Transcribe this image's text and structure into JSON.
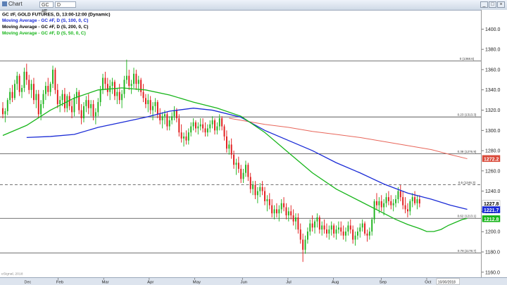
{
  "window": {
    "title": "Chart",
    "symbol_box": "GC #F",
    "period_box": "D",
    "buttons": {
      "minimize": "_",
      "maximize": "□",
      "close": "×"
    }
  },
  "chart_data": {
    "type": "candlestick",
    "legend": [
      {
        "text": "GC #F, GOLD FUTURES, D, 13:00-12:00 (Dynamic)",
        "color": "#000000"
      },
      {
        "text": "Moving Average - GC #F, D (S, 100, 0, C)",
        "color": "#1a2bd6"
      },
      {
        "text": "Moving Average - GC #F, D (S, 200, 0, C)",
        "color": "#000000"
      },
      {
        "text": "Moving Average - GC #F, D (S, 50, 0, C)",
        "color": "#17b51a"
      }
    ],
    "y_axis": {
      "ylim": [
        1155,
        1419
      ],
      "ticks": [
        1160,
        1180,
        1200,
        1220,
        1240,
        1260,
        1280,
        1300,
        1320,
        1340,
        1360,
        1380,
        1400
      ],
      "tick_labels": [
        "1160.0",
        "1180.0",
        "1200.0",
        "1220.0",
        "1240.0",
        "1260.0",
        "1280.0",
        "1300.0",
        "1320.0",
        "1340.0",
        "1360.0",
        "1380.0",
        "1400.0"
      ]
    },
    "x_axis": {
      "n_bars": 200,
      "month_labels": [
        {
          "label": "Feb",
          "index": 15
        },
        {
          "label": "Mar",
          "index": 36
        },
        {
          "label": "Apr",
          "index": 57
        },
        {
          "label": "May",
          "index": 78
        },
        {
          "label": "Jun",
          "index": 100
        },
        {
          "label": "Jul",
          "index": 121
        },
        {
          "label": "Aug",
          "index": 142
        },
        {
          "label": "Sep",
          "index": 164
        },
        {
          "label": "Oct",
          "index": 185
        }
      ],
      "left_label": "Dec",
      "right_label": "10/30/2018",
      "watermark": "eSignal, 2018"
    },
    "fib_levels": [
      {
        "value": 1368.6,
        "label": "0 (1368.6)",
        "style": "solid"
      },
      {
        "value": 1313.3,
        "label": "0.23 (1313.3)",
        "style": "solid"
      },
      {
        "value": 1276.9,
        "label": "0.38 (1276.9)",
        "style": "solid"
      },
      {
        "value": 1246.3,
        "label": "0.5 (1246.3)",
        "style": "dashed"
      },
      {
        "value": 1213.1,
        "label": "0.62 (1213.1)",
        "style": "solid"
      },
      {
        "value": 1178.7,
        "label": "0.78 (1178.7)",
        "style": "solid"
      }
    ],
    "price_tags": [
      {
        "value": 1272.2,
        "label": "1272.2",
        "bg": "#d94a3a",
        "fg": "#ffffff"
      },
      {
        "value": 1227.8,
        "label": "1227.8",
        "bg": "#ffffff",
        "fg": "#000000"
      },
      {
        "value": 1221.7,
        "label": "1221.7",
        "bg": "#1a2bd6",
        "fg": "#ffffff"
      },
      {
        "value": 1212.8,
        "label": "1212.8",
        "bg": "#17b51a",
        "fg": "#ffffff"
      }
    ],
    "colors": {
      "up": "#19b219",
      "down": "#e01515",
      "ma50": "#17b51a",
      "ma100": "#1a2bd6",
      "ma200": "#e8665a",
      "fib": "#444444"
    },
    "ma50": [
      [
        0,
        1295
      ],
      [
        10,
        1305
      ],
      [
        20,
        1320
      ],
      [
        30,
        1332
      ],
      [
        40,
        1340
      ],
      [
        50,
        1342
      ],
      [
        60,
        1340
      ],
      [
        70,
        1335
      ],
      [
        80,
        1328
      ],
      [
        90,
        1322
      ],
      [
        100,
        1314
      ],
      [
        110,
        1298
      ],
      [
        120,
        1278
      ],
      [
        130,
        1258
      ],
      [
        140,
        1242
      ],
      [
        150,
        1230
      ],
      [
        160,
        1218
      ],
      [
        165,
        1212
      ],
      [
        170,
        1207
      ],
      [
        175,
        1203
      ],
      [
        178,
        1200
      ],
      [
        181,
        1200
      ],
      [
        184,
        1202
      ],
      [
        187,
        1206
      ],
      [
        190,
        1209
      ],
      [
        193,
        1212
      ],
      [
        195,
        1213
      ]
    ],
    "ma100": [
      [
        10,
        1293
      ],
      [
        20,
        1294
      ],
      [
        30,
        1296
      ],
      [
        40,
        1303
      ],
      [
        50,
        1308
      ],
      [
        60,
        1313
      ],
      [
        70,
        1319
      ],
      [
        80,
        1322
      ],
      [
        88,
        1320
      ],
      [
        100,
        1313
      ],
      [
        110,
        1300
      ],
      [
        120,
        1290
      ],
      [
        130,
        1280
      ],
      [
        140,
        1268
      ],
      [
        150,
        1258
      ],
      [
        160,
        1247
      ],
      [
        170,
        1238
      ],
      [
        180,
        1232
      ],
      [
        188,
        1226
      ],
      [
        195,
        1222
      ]
    ],
    "ma200": [
      [
        95,
        1312
      ],
      [
        110,
        1306
      ],
      [
        120,
        1303
      ],
      [
        130,
        1299
      ],
      [
        140,
        1296
      ],
      [
        150,
        1293
      ],
      [
        160,
        1289
      ],
      [
        170,
        1285
      ],
      [
        180,
        1281
      ],
      [
        188,
        1276
      ],
      [
        195,
        1272
      ]
    ],
    "candles": [
      [
        1322,
        1328,
        1312,
        1316
      ],
      [
        1316,
        1322,
        1308,
        1319
      ],
      [
        1319,
        1332,
        1315,
        1330
      ],
      [
        1330,
        1342,
        1326,
        1338
      ],
      [
        1338,
        1345,
        1328,
        1332
      ],
      [
        1332,
        1350,
        1330,
        1346
      ],
      [
        1346,
        1358,
        1340,
        1354
      ],
      [
        1354,
        1356,
        1334,
        1338
      ],
      [
        1338,
        1345,
        1332,
        1342
      ],
      [
        1342,
        1362,
        1338,
        1358
      ],
      [
        1358,
        1366,
        1345,
        1350
      ],
      [
        1350,
        1355,
        1336,
        1340
      ],
      [
        1340,
        1350,
        1332,
        1346
      ],
      [
        1346,
        1352,
        1326,
        1330
      ],
      [
        1330,
        1340,
        1322,
        1336
      ],
      [
        1336,
        1340,
        1312,
        1316
      ],
      [
        1316,
        1330,
        1310,
        1326
      ],
      [
        1326,
        1340,
        1322,
        1336
      ],
      [
        1336,
        1348,
        1330,
        1344
      ],
      [
        1344,
        1352,
        1334,
        1338
      ],
      [
        1338,
        1348,
        1334,
        1346
      ],
      [
        1346,
        1364,
        1342,
        1360
      ],
      [
        1360,
        1362,
        1336,
        1340
      ],
      [
        1340,
        1346,
        1322,
        1326
      ],
      [
        1326,
        1334,
        1318,
        1330
      ],
      [
        1330,
        1340,
        1324,
        1336
      ],
      [
        1336,
        1342,
        1318,
        1322
      ],
      [
        1322,
        1336,
        1318,
        1334
      ],
      [
        1334,
        1338,
        1320,
        1324
      ],
      [
        1324,
        1330,
        1312,
        1318
      ],
      [
        1318,
        1336,
        1314,
        1332
      ],
      [
        1332,
        1342,
        1326,
        1338
      ],
      [
        1338,
        1340,
        1316,
        1320
      ],
      [
        1320,
        1326,
        1306,
        1312
      ],
      [
        1312,
        1328,
        1308,
        1324
      ],
      [
        1324,
        1334,
        1318,
        1330
      ],
      [
        1330,
        1336,
        1316,
        1322
      ],
      [
        1322,
        1330,
        1314,
        1326
      ],
      [
        1326,
        1330,
        1310,
        1314
      ],
      [
        1314,
        1322,
        1306,
        1318
      ],
      [
        1318,
        1332,
        1314,
        1328
      ],
      [
        1328,
        1344,
        1324,
        1340
      ],
      [
        1340,
        1356,
        1336,
        1352
      ],
      [
        1352,
        1358,
        1340,
        1346
      ],
      [
        1346,
        1352,
        1334,
        1338
      ],
      [
        1338,
        1350,
        1330,
        1344
      ],
      [
        1344,
        1352,
        1336,
        1348
      ],
      [
        1348,
        1350,
        1330,
        1334
      ],
      [
        1334,
        1342,
        1326,
        1338
      ],
      [
        1338,
        1346,
        1326,
        1330
      ],
      [
        1330,
        1340,
        1322,
        1336
      ],
      [
        1336,
        1354,
        1332,
        1350
      ],
      [
        1350,
        1370,
        1346,
        1354
      ],
      [
        1354,
        1360,
        1340,
        1344
      ],
      [
        1344,
        1350,
        1336,
        1346
      ],
      [
        1346,
        1362,
        1342,
        1356
      ],
      [
        1356,
        1360,
        1340,
        1346
      ],
      [
        1346,
        1354,
        1338,
        1350
      ],
      [
        1350,
        1352,
        1334,
        1338
      ],
      [
        1338,
        1346,
        1328,
        1332
      ],
      [
        1332,
        1336,
        1322,
        1326
      ],
      [
        1326,
        1336,
        1318,
        1330
      ],
      [
        1330,
        1334,
        1316,
        1320
      ],
      [
        1320,
        1328,
        1310,
        1324
      ],
      [
        1324,
        1332,
        1318,
        1328
      ],
      [
        1328,
        1330,
        1312,
        1316
      ],
      [
        1316,
        1322,
        1306,
        1310
      ],
      [
        1310,
        1318,
        1302,
        1314
      ],
      [
        1314,
        1320,
        1306,
        1316
      ],
      [
        1316,
        1318,
        1300,
        1304
      ],
      [
        1304,
        1314,
        1300,
        1310
      ],
      [
        1310,
        1318,
        1306,
        1314
      ],
      [
        1314,
        1324,
        1310,
        1320
      ],
      [
        1320,
        1322,
        1308,
        1312
      ],
      [
        1312,
        1316,
        1294,
        1298
      ],
      [
        1298,
        1306,
        1288,
        1292
      ],
      [
        1292,
        1298,
        1284,
        1294
      ],
      [
        1294,
        1300,
        1286,
        1290
      ],
      [
        1290,
        1302,
        1286,
        1298
      ],
      [
        1298,
        1308,
        1294,
        1304
      ],
      [
        1304,
        1312,
        1300,
        1308
      ],
      [
        1308,
        1310,
        1298,
        1302
      ],
      [
        1302,
        1308,
        1296,
        1304
      ],
      [
        1304,
        1312,
        1300,
        1306
      ],
      [
        1306,
        1312,
        1298,
        1302
      ],
      [
        1302,
        1308,
        1294,
        1298
      ],
      [
        1298,
        1306,
        1294,
        1302
      ],
      [
        1302,
        1310,
        1298,
        1306
      ],
      [
        1306,
        1314,
        1302,
        1310
      ],
      [
        1310,
        1312,
        1296,
        1300
      ],
      [
        1300,
        1308,
        1296,
        1304
      ],
      [
        1304,
        1316,
        1300,
        1312
      ],
      [
        1312,
        1314,
        1300,
        1304
      ],
      [
        1304,
        1306,
        1290,
        1294
      ],
      [
        1294,
        1300,
        1278,
        1282
      ],
      [
        1282,
        1290,
        1276,
        1286
      ],
      [
        1286,
        1292,
        1272,
        1276
      ],
      [
        1276,
        1280,
        1262,
        1266
      ],
      [
        1266,
        1272,
        1256,
        1268
      ],
      [
        1268,
        1274,
        1258,
        1262
      ],
      [
        1262,
        1266,
        1248,
        1252
      ],
      [
        1252,
        1262,
        1248,
        1258
      ],
      [
        1258,
        1270,
        1254,
        1266
      ],
      [
        1266,
        1268,
        1250,
        1254
      ],
      [
        1254,
        1258,
        1238,
        1242
      ],
      [
        1242,
        1250,
        1236,
        1246
      ],
      [
        1246,
        1250,
        1232,
        1236
      ],
      [
        1236,
        1244,
        1228,
        1240
      ],
      [
        1240,
        1248,
        1234,
        1244
      ],
      [
        1244,
        1250,
        1236,
        1240
      ],
      [
        1240,
        1244,
        1226,
        1230
      ],
      [
        1230,
        1236,
        1220,
        1232
      ],
      [
        1232,
        1238,
        1222,
        1226
      ],
      [
        1226,
        1232,
        1214,
        1218
      ],
      [
        1218,
        1226,
        1212,
        1222
      ],
      [
        1222,
        1228,
        1214,
        1218
      ],
      [
        1218,
        1226,
        1210,
        1222
      ],
      [
        1222,
        1232,
        1218,
        1228
      ],
      [
        1228,
        1234,
        1220,
        1224
      ],
      [
        1224,
        1228,
        1212,
        1216
      ],
      [
        1216,
        1224,
        1210,
        1220
      ],
      [
        1220,
        1226,
        1212,
        1216
      ],
      [
        1216,
        1222,
        1206,
        1210
      ],
      [
        1210,
        1218,
        1202,
        1214
      ],
      [
        1214,
        1218,
        1198,
        1202
      ],
      [
        1202,
        1208,
        1188,
        1192
      ],
      [
        1192,
        1198,
        1170,
        1182
      ],
      [
        1182,
        1196,
        1178,
        1192
      ],
      [
        1192,
        1204,
        1188,
        1200
      ],
      [
        1200,
        1212,
        1196,
        1208
      ],
      [
        1208,
        1216,
        1200,
        1204
      ],
      [
        1204,
        1212,
        1198,
        1210
      ],
      [
        1210,
        1218,
        1204,
        1214
      ],
      [
        1214,
        1216,
        1198,
        1202
      ],
      [
        1202,
        1210,
        1196,
        1206
      ],
      [
        1206,
        1212,
        1198,
        1202
      ],
      [
        1202,
        1208,
        1194,
        1198
      ],
      [
        1198,
        1206,
        1192,
        1202
      ],
      [
        1202,
        1210,
        1196,
        1206
      ],
      [
        1206,
        1208,
        1194,
        1198
      ],
      [
        1198,
        1206,
        1192,
        1202
      ],
      [
        1202,
        1210,
        1198,
        1204
      ],
      [
        1204,
        1210,
        1196,
        1200
      ],
      [
        1200,
        1206,
        1192,
        1196
      ],
      [
        1196,
        1204,
        1190,
        1200
      ],
      [
        1200,
        1210,
        1196,
        1206
      ],
      [
        1206,
        1212,
        1198,
        1202
      ],
      [
        1202,
        1206,
        1188,
        1192
      ],
      [
        1192,
        1200,
        1186,
        1196
      ],
      [
        1196,
        1204,
        1192,
        1200
      ],
      [
        1200,
        1208,
        1194,
        1204
      ],
      [
        1204,
        1212,
        1200,
        1208
      ],
      [
        1208,
        1210,
        1196,
        1198
      ],
      [
        1198,
        1202,
        1190,
        1196
      ],
      [
        1196,
        1204,
        1192,
        1200
      ],
      [
        1200,
        1214,
        1196,
        1212
      ],
      [
        1212,
        1232,
        1208,
        1230
      ],
      [
        1230,
        1238,
        1222,
        1226
      ],
      [
        1226,
        1234,
        1218,
        1230
      ],
      [
        1230,
        1236,
        1220,
        1224
      ],
      [
        1224,
        1232,
        1216,
        1228
      ],
      [
        1228,
        1238,
        1224,
        1234
      ],
      [
        1234,
        1240,
        1226,
        1230
      ],
      [
        1230,
        1236,
        1222,
        1226
      ],
      [
        1226,
        1232,
        1220,
        1228
      ],
      [
        1228,
        1236,
        1224,
        1232
      ],
      [
        1232,
        1244,
        1228,
        1240
      ],
      [
        1240,
        1246,
        1230,
        1234
      ],
      [
        1234,
        1240,
        1222,
        1226
      ],
      [
        1226,
        1234,
        1218,
        1222
      ],
      [
        1222,
        1228,
        1214,
        1220
      ],
      [
        1220,
        1232,
        1216,
        1230
      ],
      [
        1230,
        1238,
        1224,
        1234
      ],
      [
        1234,
        1240,
        1226,
        1228
      ],
      [
        1228,
        1236,
        1222,
        1232
      ],
      [
        1232,
        1236,
        1224,
        1227.8
      ]
    ]
  }
}
